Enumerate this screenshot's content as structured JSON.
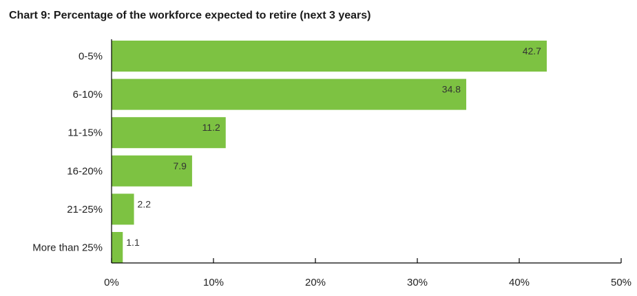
{
  "chart_data": {
    "type": "bar",
    "orientation": "horizontal",
    "title": "Chart 9: Percentage of the workforce expected to retire (next 3 years)",
    "categories": [
      "0-5%",
      "6-10%",
      "11-15%",
      "16-20%",
      "21-25%",
      "More than 25%"
    ],
    "values": [
      42.7,
      34.8,
      11.2,
      7.9,
      2.2,
      1.1
    ],
    "value_labels": [
      "42.7",
      "34.8",
      "11.2",
      "7.9",
      "2.2",
      "1.1"
    ],
    "xlim": [
      0,
      50
    ],
    "x_ticks": [
      0,
      10,
      20,
      30,
      40,
      50
    ],
    "x_tick_labels": [
      "0%",
      "10%",
      "20%",
      "30%",
      "40%",
      "50%"
    ],
    "xlabel": "",
    "ylabel": "",
    "grid": false,
    "legend": "none",
    "bar_color": "#7dc242"
  }
}
